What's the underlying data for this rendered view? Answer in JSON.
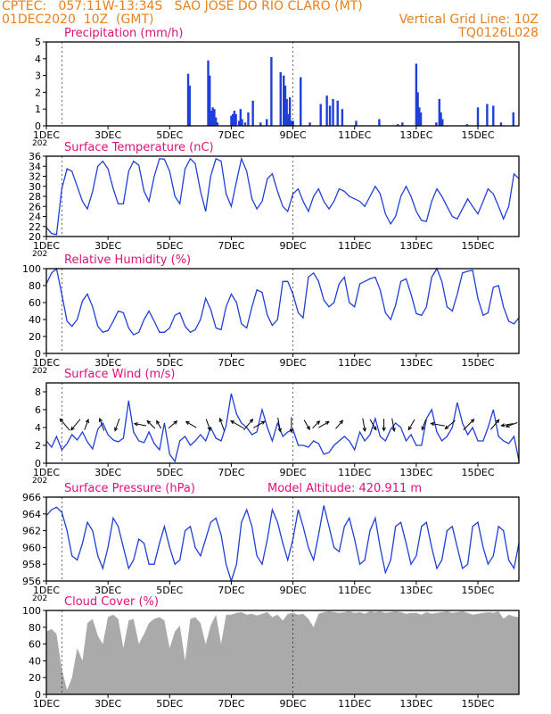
{
  "header": {
    "line1_left": "CPTEC:   057:11W-13:34S   SAO JOSE DO RIO CLARO (MT)",
    "line2_left": "01DEC2020  10Z  (GMT)",
    "line2_right": "Vertical Grid Line: 10Z",
    "line3_right": "TQ0126L028"
  },
  "x_axis": {
    "tick_labels": [
      "1DEC",
      "3DEC",
      "5DEC",
      "7DEC",
      "9DEC",
      "11DEC",
      "13DEC",
      "15DEC"
    ],
    "tick_days": [
      0,
      2,
      4,
      6,
      8,
      10,
      12,
      14
    ],
    "domain_days": [
      0,
      15.33
    ],
    "year_fragment": "202"
  },
  "colors": {
    "header": "#e8801a",
    "title": "#e0107a",
    "line": "#1f3fd8",
    "bar": "#1f3fd8",
    "cloud": "#aaaaaa",
    "axis": "#000000",
    "arrow": "#000000"
  },
  "chart_data": [
    {
      "type": "bar",
      "title": "Precipitation (mm/h)",
      "ylim": [
        0,
        5
      ],
      "yticks": [
        0,
        1,
        2,
        3,
        4,
        5
      ],
      "x": [
        4.6,
        4.65,
        5.25,
        5.3,
        5.35,
        5.4,
        5.45,
        5.5,
        5.55,
        6.0,
        6.05,
        6.1,
        6.15,
        6.25,
        6.3,
        6.35,
        6.45,
        6.55,
        6.7,
        6.95,
        7.15,
        7.3,
        7.6,
        7.7,
        7.75,
        7.8,
        7.85,
        7.9,
        7.95,
        8.0,
        8.25,
        8.55,
        8.9,
        9.1,
        9.2,
        9.3,
        9.45,
        9.6,
        10.05,
        10.8,
        11.4,
        11.55,
        12.0,
        12.05,
        12.1,
        12.15,
        12.65,
        12.75,
        12.8,
        12.85,
        13.65,
        14.0,
        14.3,
        14.5,
        14.75,
        15.15
      ],
      "values": [
        3.1,
        2.4,
        3.9,
        3.0,
        0.9,
        1.1,
        1.0,
        0.5,
        0.2,
        0.6,
        0.7,
        0.9,
        0.7,
        0.3,
        1.0,
        0.4,
        0.2,
        0.8,
        1.5,
        0.2,
        0.4,
        4.1,
        3.2,
        3.0,
        2.4,
        1.6,
        0.7,
        1.7,
        0.3,
        0.3,
        2.9,
        0.2,
        1.3,
        1.8,
        1.2,
        1.6,
        1.5,
        1.0,
        0.3,
        0.4,
        0.1,
        0.2,
        3.7,
        2.0,
        1.1,
        0.8,
        0.2,
        1.6,
        0.8,
        0.4,
        0.1,
        1.1,
        1.3,
        1.2,
        0.2,
        0.8
      ]
    },
    {
      "type": "line",
      "title": "Surface Temperature (nC)",
      "ylim": [
        20,
        36
      ],
      "yticks": [
        20,
        22,
        24,
        26,
        28,
        30,
        32,
        34,
        36
      ],
      "x": [
        0,
        0.17,
        0.33,
        0.5,
        0.67,
        0.83,
        1.0,
        1.17,
        1.33,
        1.5,
        1.67,
        1.83,
        2.0,
        2.17,
        2.33,
        2.5,
        2.67,
        2.83,
        3.0,
        3.17,
        3.33,
        3.5,
        3.67,
        3.83,
        4.0,
        4.17,
        4.33,
        4.5,
        4.67,
        4.83,
        5.0,
        5.17,
        5.33,
        5.5,
        5.67,
        5.83,
        6.0,
        6.17,
        6.33,
        6.5,
        6.67,
        6.83,
        7.0,
        7.17,
        7.33,
        7.5,
        7.67,
        7.83,
        8.0,
        8.17,
        8.33,
        8.5,
        8.67,
        8.83,
        9.0,
        9.17,
        9.33,
        9.5,
        9.67,
        9.83,
        10.0,
        10.17,
        10.33,
        10.5,
        10.67,
        10.83,
        11.0,
        11.17,
        11.33,
        11.5,
        11.67,
        11.83,
        12.0,
        12.17,
        12.33,
        12.5,
        12.67,
        12.83,
        13.0,
        13.17,
        13.33,
        13.5,
        13.67,
        13.83,
        14.0,
        14.17,
        14.33,
        14.5,
        14.67,
        14.83,
        15.0,
        15.17,
        15.33
      ],
      "values": [
        21.8,
        20.6,
        20.4,
        29.5,
        33.5,
        33.0,
        30.0,
        27.0,
        25.5,
        29.0,
        34.0,
        35.0,
        33.5,
        29.5,
        26.5,
        26.5,
        33.0,
        35.0,
        34.2,
        29.0,
        27.0,
        32.0,
        35.5,
        35.4,
        33.0,
        28.0,
        26.5,
        33.5,
        35.5,
        34.5,
        29.0,
        25.0,
        32.0,
        35.5,
        35.0,
        28.5,
        26.0,
        31.0,
        35.5,
        33.0,
        27.5,
        25.5,
        27.0,
        31.5,
        32.5,
        29.0,
        26.0,
        25.0,
        28.5,
        29.5,
        27.0,
        25.0,
        28.0,
        29.5,
        27.0,
        25.5,
        27.0,
        29.5,
        29.0,
        28.0,
        27.5,
        27.0,
        26.0,
        28.0,
        30.0,
        28.5,
        24.5,
        22.5,
        24.0,
        28.0,
        30.0,
        28.0,
        25.0,
        23.2,
        23.0,
        27.0,
        29.5,
        28.0,
        26.0,
        24.0,
        23.5,
        25.5,
        27.5,
        26.0,
        24.5,
        27.0,
        29.5,
        28.5,
        26.0,
        23.5,
        26.0,
        32.5,
        31.5
      ]
    },
    {
      "type": "line",
      "title": "Relative Humidity (%)",
      "ylim": [
        0,
        100
      ],
      "yticks": [
        0,
        20,
        40,
        60,
        80,
        100
      ],
      "x": [
        0,
        0.17,
        0.33,
        0.5,
        0.67,
        0.83,
        1.0,
        1.17,
        1.33,
        1.5,
        1.67,
        1.83,
        2.0,
        2.17,
        2.33,
        2.5,
        2.67,
        2.83,
        3.0,
        3.17,
        3.33,
        3.5,
        3.67,
        3.83,
        4.0,
        4.17,
        4.33,
        4.5,
        4.67,
        4.83,
        5.0,
        5.17,
        5.33,
        5.5,
        5.67,
        5.83,
        6.0,
        6.17,
        6.33,
        6.5,
        6.67,
        6.83,
        7.0,
        7.17,
        7.33,
        7.5,
        7.67,
        7.83,
        8.0,
        8.17,
        8.33,
        8.5,
        8.67,
        8.83,
        9.0,
        9.17,
        9.33,
        9.5,
        9.67,
        9.83,
        10.0,
        10.17,
        10.33,
        10.5,
        10.67,
        10.83,
        11.0,
        11.17,
        11.33,
        11.5,
        11.67,
        11.83,
        12.0,
        12.17,
        12.33,
        12.5,
        12.67,
        12.83,
        13.0,
        13.17,
        13.33,
        13.5,
        13.67,
        13.83,
        14.0,
        14.17,
        14.33,
        14.5,
        14.67,
        14.83,
        15.0,
        15.17,
        15.33
      ],
      "values": [
        82,
        95,
        100,
        70,
        38,
        32,
        40,
        62,
        70,
        55,
        32,
        25,
        27,
        38,
        50,
        48,
        30,
        22,
        25,
        40,
        50,
        38,
        25,
        25,
        30,
        45,
        48,
        32,
        25,
        28,
        40,
        65,
        52,
        30,
        28,
        55,
        70,
        60,
        35,
        30,
        55,
        75,
        72,
        45,
        33,
        40,
        85,
        85,
        70,
        48,
        42,
        90,
        95,
        85,
        63,
        55,
        60,
        82,
        90,
        60,
        55,
        82,
        85,
        88,
        90,
        75,
        48,
        40,
        57,
        85,
        88,
        70,
        47,
        45,
        55,
        90,
        100,
        85,
        55,
        50,
        70,
        95,
        97,
        98,
        65,
        45,
        48,
        78,
        80,
        55,
        38,
        35,
        42
      ]
    },
    {
      "type": "line",
      "title": "Surface Wind (m/s)",
      "ylim": [
        0,
        9
      ],
      "yticks": [
        0,
        2,
        4,
        6,
        8
      ],
      "x": [
        0,
        0.17,
        0.33,
        0.5,
        0.67,
        0.83,
        1.0,
        1.17,
        1.33,
        1.5,
        1.67,
        1.83,
        2.0,
        2.17,
        2.33,
        2.5,
        2.67,
        2.83,
        3.0,
        3.17,
        3.33,
        3.5,
        3.67,
        3.83,
        4.0,
        4.17,
        4.33,
        4.5,
        4.67,
        4.83,
        5.0,
        5.17,
        5.33,
        5.5,
        5.67,
        5.83,
        6.0,
        6.17,
        6.33,
        6.5,
        6.67,
        6.83,
        7.0,
        7.17,
        7.33,
        7.5,
        7.67,
        7.83,
        8.0,
        8.17,
        8.33,
        8.5,
        8.67,
        8.83,
        9.0,
        9.17,
        9.33,
        9.5,
        9.67,
        9.83,
        10.0,
        10.17,
        10.33,
        10.5,
        10.67,
        10.83,
        11.0,
        11.17,
        11.33,
        11.5,
        11.67,
        11.83,
        12.0,
        12.17,
        12.33,
        12.5,
        12.67,
        12.83,
        13.0,
        13.17,
        13.33,
        13.5,
        13.67,
        13.83,
        14.0,
        14.17,
        14.33,
        14.5,
        14.67,
        14.83,
        15.0,
        15.17,
        15.33
      ],
      "values": [
        2.5,
        1.8,
        3.0,
        1.5,
        2.2,
        3.2,
        2.6,
        3.5,
        2.4,
        1.6,
        3.8,
        4.5,
        3.2,
        2.6,
        2.4,
        2.8,
        7.0,
        3.5,
        2.5,
        2.3,
        3.5,
        2.2,
        1.5,
        4.5,
        1.0,
        0.2,
        2.5,
        3.0,
        2.0,
        2.5,
        3.2,
        2.5,
        4.0,
        2.8,
        2.5,
        4.2,
        7.8,
        5.5,
        4.5,
        4.0,
        3.2,
        3.5,
        6.0,
        4.0,
        2.5,
        4.5,
        3.0,
        3.5,
        3.8,
        2.0,
        2.0,
        1.8,
        2.5,
        2.2,
        1.0,
        1.2,
        2.0,
        2.5,
        3.0,
        2.5,
        1.5,
        3.5,
        2.5,
        3.2,
        5.0,
        3.0,
        2.5,
        3.8,
        4.5,
        4.0,
        2.5,
        3.2,
        2.0,
        2.0,
        5.0,
        6.0,
        3.5,
        2.5,
        3.0,
        4.0,
        6.8,
        4.5,
        3.2,
        4.0,
        2.5,
        2.5,
        4.0,
        6.0,
        3.0,
        2.5,
        2.2,
        3.0,
        0.3
      ]
    },
    {
      "type": "line",
      "title": "Surface Pressure (hPa)",
      "annotation": "Model Altitude: 420.911  m",
      "ylim": [
        956,
        966
      ],
      "yticks": [
        956,
        958,
        960,
        962,
        964,
        966
      ],
      "x": [
        0,
        0.17,
        0.33,
        0.5,
        0.67,
        0.83,
        1.0,
        1.17,
        1.33,
        1.5,
        1.67,
        1.83,
        2.0,
        2.17,
        2.33,
        2.5,
        2.67,
        2.83,
        3.0,
        3.17,
        3.33,
        3.5,
        3.67,
        3.83,
        4.0,
        4.17,
        4.33,
        4.5,
        4.67,
        4.83,
        5.0,
        5.17,
        5.33,
        5.5,
        5.67,
        5.83,
        6.0,
        6.17,
        6.33,
        6.5,
        6.67,
        6.83,
        7.0,
        7.17,
        7.33,
        7.5,
        7.67,
        7.83,
        8.0,
        8.17,
        8.33,
        8.5,
        8.67,
        8.83,
        9.0,
        9.17,
        9.33,
        9.5,
        9.67,
        9.83,
        10.0,
        10.17,
        10.33,
        10.5,
        10.67,
        10.83,
        11.0,
        11.17,
        11.33,
        11.5,
        11.67,
        11.83,
        12.0,
        12.17,
        12.33,
        12.5,
        12.67,
        12.83,
        13.0,
        13.17,
        13.33,
        13.5,
        13.67,
        13.83,
        14.0,
        14.17,
        14.33,
        14.5,
        14.67,
        14.83,
        15.0,
        15.17,
        15.33
      ],
      "values": [
        963.8,
        964.5,
        964.8,
        964.2,
        962.0,
        959.0,
        958.5,
        960.5,
        963.0,
        962.0,
        959.0,
        957.5,
        960.0,
        963.5,
        962.5,
        960.0,
        957.5,
        958.5,
        961.0,
        960.5,
        958.0,
        958.0,
        960.5,
        962.5,
        960.0,
        958.0,
        958.5,
        962.0,
        962.5,
        960.0,
        959.0,
        961.0,
        963.0,
        963.5,
        961.5,
        958.0,
        956.0,
        958.0,
        963.0,
        964.5,
        962.5,
        959.0,
        958.0,
        961.0,
        964.5,
        963.0,
        960.5,
        958.5,
        961.0,
        964.5,
        962.5,
        960.0,
        958.5,
        961.5,
        965.0,
        962.5,
        960.0,
        959.5,
        962.5,
        963.5,
        961.0,
        958.0,
        958.5,
        962.0,
        963.5,
        960.0,
        957.0,
        958.5,
        962.5,
        963.0,
        960.5,
        958.0,
        959.0,
        962.5,
        963.0,
        960.0,
        957.5,
        958.5,
        962.0,
        962.5,
        960.0,
        957.5,
        958.0,
        962.5,
        963.0,
        960.0,
        958.0,
        959.0,
        962.5,
        962.0,
        958.5,
        957.5,
        960.5
      ]
    },
    {
      "type": "area",
      "title": "Cloud Cover (%)",
      "ylim": [
        0,
        100
      ],
      "yticks": [
        0,
        20,
        40,
        60,
        80,
        100
      ],
      "x": [
        0,
        0.17,
        0.33,
        0.5,
        0.67,
        0.83,
        1.0,
        1.17,
        1.33,
        1.5,
        1.67,
        1.83,
        2.0,
        2.17,
        2.33,
        2.5,
        2.67,
        2.83,
        3.0,
        3.17,
        3.33,
        3.5,
        3.67,
        3.83,
        4.0,
        4.17,
        4.33,
        4.5,
        4.67,
        4.83,
        5.0,
        5.17,
        5.33,
        5.5,
        5.67,
        5.83,
        6.0,
        6.17,
        6.33,
        6.5,
        6.67,
        6.83,
        7.0,
        7.17,
        7.33,
        7.5,
        7.67,
        7.83,
        8.0,
        8.17,
        8.33,
        8.5,
        8.67,
        8.83,
        9.0,
        9.17,
        9.33,
        9.5,
        9.67,
        9.83,
        10.0,
        10.17,
        10.33,
        10.5,
        10.67,
        10.83,
        11.0,
        11.17,
        11.33,
        11.5,
        11.67,
        11.83,
        12.0,
        12.17,
        12.33,
        12.5,
        12.67,
        12.83,
        13.0,
        13.17,
        13.33,
        13.5,
        13.67,
        13.83,
        14.0,
        14.17,
        14.33,
        14.5,
        14.67,
        14.83,
        15.0,
        15.17,
        15.33
      ],
      "values": [
        75,
        78,
        72,
        30,
        5,
        20,
        55,
        40,
        85,
        90,
        70,
        60,
        92,
        95,
        90,
        55,
        88,
        90,
        60,
        72,
        85,
        90,
        92,
        88,
        55,
        75,
        82,
        40,
        90,
        92,
        85,
        60,
        82,
        95,
        60,
        95,
        95,
        97,
        98,
        95,
        96,
        94,
        96,
        98,
        92,
        95,
        88,
        96,
        97,
        95,
        96,
        90,
        80,
        96,
        98,
        99,
        98,
        97,
        98,
        99,
        97,
        98,
        96,
        99,
        98,
        99,
        97,
        98,
        99,
        98,
        96,
        97,
        97,
        95,
        98,
        96,
        97,
        98,
        99,
        97,
        98,
        99,
        97,
        95,
        96,
        97,
        98,
        97,
        99,
        90,
        95,
        93,
        92
      ]
    }
  ],
  "wind_arrows": {
    "x": [
      0.6,
      0.95,
      1.3,
      1.8,
      2.3,
      3.05,
      3.4,
      3.65,
      4.1,
      4.7,
      5.25,
      5.7,
      6.2,
      6.55,
      6.9,
      7.55,
      7.95,
      8.45,
      8.75,
      9.0,
      9.5,
      10.3,
      10.6,
      10.95,
      11.25,
      11.85,
      12.25,
      12.7,
      13.1,
      13.7,
      14.55,
      14.95,
      15.1
    ],
    "speed": [
      6.0,
      5.5,
      4.0,
      5.0,
      5.0,
      4.5,
      4.0,
      3.0,
      4.0,
      4.5,
      4.5,
      5.0,
      6.0,
      5.5,
      5.0,
      5.5,
      6.0,
      4.0,
      3.5,
      4.5,
      4.0,
      5.0,
      4.5,
      4.5,
      5.0,
      4.5,
      4.0,
      5.5,
      5.0,
      6.0,
      5.0,
      4.5,
      4.5
    ],
    "direction_deg": [
      320,
      220,
      20,
      340,
      200,
      280,
      315,
      330,
      50,
      300,
      160,
      340,
      300,
      40,
      60,
      170,
      180,
      150,
      45,
      60,
      40,
      170,
      150,
      180,
      170,
      210,
      200,
      280,
      230,
      45,
      40,
      260,
      250
    ]
  },
  "vertical_grid": {
    "day_offsets": [
      0.5,
      8.0
    ]
  }
}
